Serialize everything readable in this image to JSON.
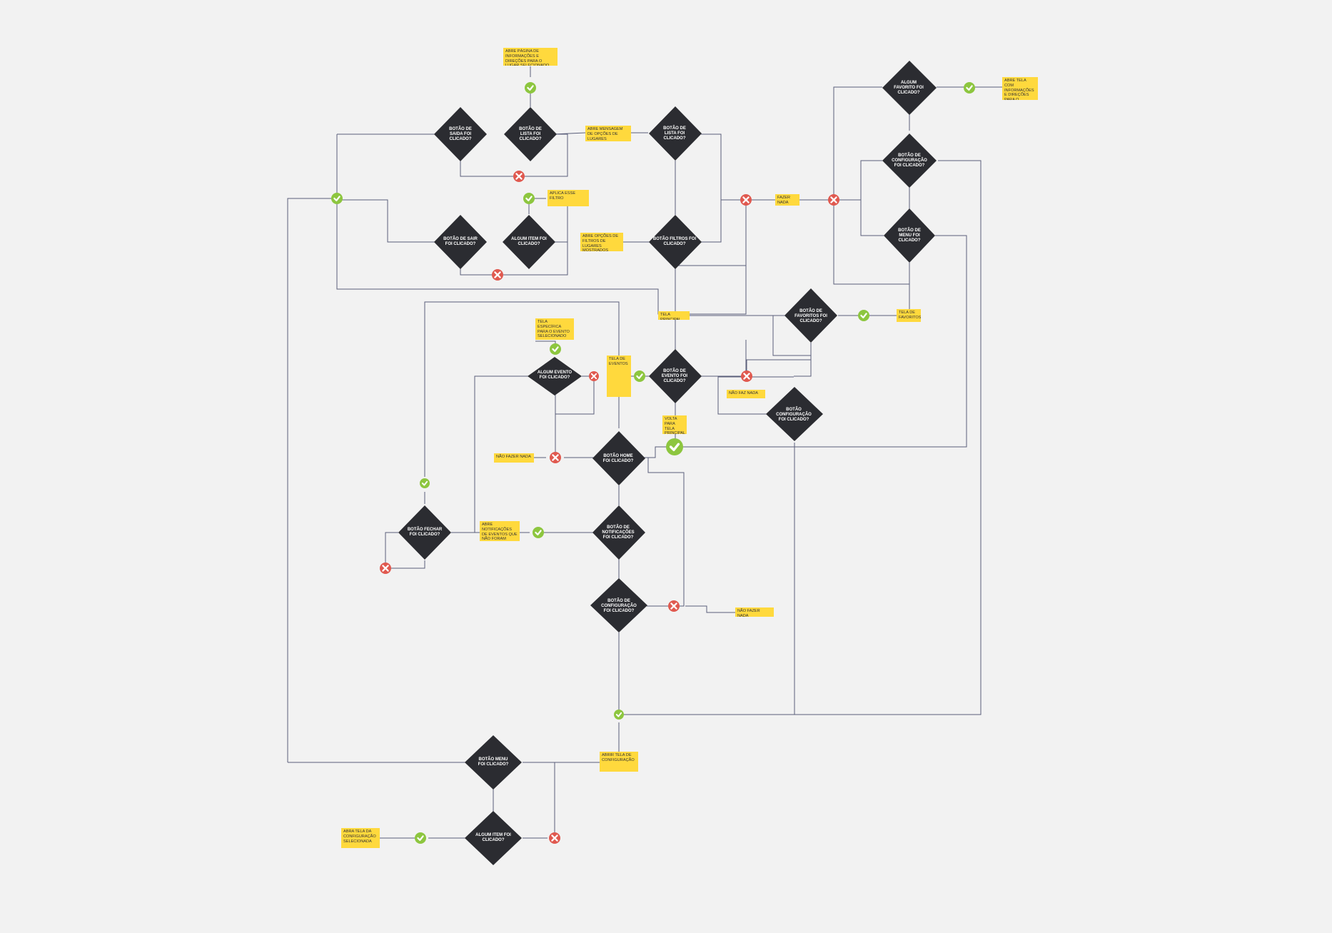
{
  "colors": {
    "background": "#f2f2f2",
    "decision": "#2b2c31",
    "note": "#ffd93d",
    "yes": "#8dc63f",
    "no": "#e0594f",
    "line": "#5a5e7a"
  },
  "decisions": {
    "sair_top": "BOTÃO DE SAIDA FOI CLICADO?",
    "lista_left": "BOTÃO DE LISTA FOI CLICADO?",
    "lista_right": "BOTÃO DE LISTA FOI CLICADO?",
    "algum_favorito": "ALGUM FAVORITO FOI CLICADO?",
    "config_right": "BOTÃO DE CONFIGURAÇÃO FOI CLICADO?",
    "menu_right": "BOTÃO DE MENU FOI CLICADO?",
    "sair_mid": "BOTÃO DE SAIR FOI CLICADO?",
    "algum_item": "ALGUM ITEM FOI CLICADO?",
    "filtros": "BOTÃO FILTROS FOI CLICADO?",
    "favoritos": "BOTÃO DE FAVORITOS FOI CLICADO?",
    "algum_evento": "ALGUM EVENTO FOI CLICADO?",
    "evento": "BOTÃO DE EVENTO FOI CLICADO?",
    "config_mid": "BOTÃO CONFIGURAÇÃO FOI CLICADO?",
    "home": "BOTÃO HOME FOI CLICADO?",
    "fechar": "BOTÃO FECHAR FOI CLICADO?",
    "notificacoes": "BOTÃO DE NOTIFICAÇÕES FOI CLICADO?",
    "config_low": "BOTÃO DE CONFIGURAÇÃO FOI CLICADO?",
    "menu_bottom": "BOTÃO MENU FOI CLICADO?",
    "algum_item_bottom": "ALGUM ITEM FOI CLICADO?"
  },
  "notes": {
    "abre_pagina": "ABRE PÁGINA DE INFORMAÇÕES E DIREÇÕES PARA O LUGAR SELECIONADO",
    "abre_mensagem": "ABRE MENSAGEM DE OPÇÕES DE LUGARES EXISTENTES",
    "abre_tela_com": "ABRE TELA COM INFORMAÇÕES E DIREÇÕES PARA O FAVORITO",
    "aplica_filtro": "APLICA ESSE FILTRO",
    "fazer_nada_right": "FAZER NADA",
    "abre_opcoes": "ABRE OPÇÕES DE FILTROS DE LUGARES MOSTRADOS",
    "tela_principal": "TELA PRINCIPAL",
    "tela_favoritos": "TELA DE FAVORITOS",
    "tela_especifica": "TELA ESPECÍFICA PARA O EVENTO SELECIONADO",
    "tela_eventos": "TELA DE EVENTOS",
    "nao_faz_nada": "NÃO FAZ NADA",
    "volta_principal": "VOLTA PARA TELA PRINCIPAL",
    "nao_fazer_nada_left": "NÃO FAZER NADA",
    "abre_notificacoes": "ABRE NOTIFICAÇÕES DE EVENTOS QUE NÃO FORAM VISTOS",
    "nao_fazer_nada_low": "NÃO FAZER NADA",
    "abrir_config": "ABRIR TELA DE CONFIGURAÇÃO",
    "abra_tela_config": "ABRA TELA DA CONFIGURAÇÃO SELECIONADA"
  }
}
